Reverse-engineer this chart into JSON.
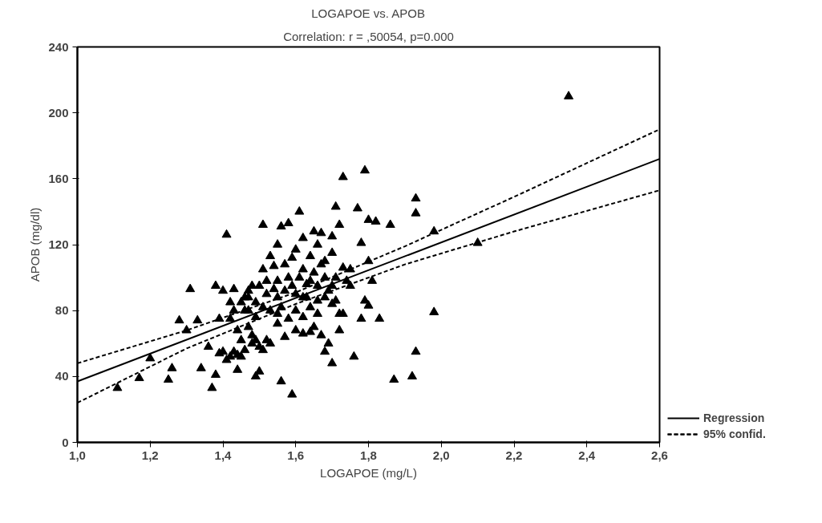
{
  "chart_data": {
    "type": "scatter",
    "title": "LOGAPOE vs. APOB",
    "subtitle": "Correlation: r = ,50054, p=0.000",
    "xlabel": "LOGAPOE (mg/L)",
    "ylabel": "APOB (mg/dl)",
    "xlim": [
      1.0,
      2.6
    ],
    "ylim": [
      0,
      240
    ],
    "xticks": [
      {
        "value": 1.0,
        "label": "1,0"
      },
      {
        "value": 1.2,
        "label": "1,2"
      },
      {
        "value": 1.4,
        "label": "1,4"
      },
      {
        "value": 1.6,
        "label": "1,6"
      },
      {
        "value": 1.8,
        "label": "1,8"
      },
      {
        "value": 2.0,
        "label": "2,0"
      },
      {
        "value": 2.2,
        "label": "2,2"
      },
      {
        "value": 2.4,
        "label": "2,4"
      },
      {
        "value": 2.6,
        "label": "2,6"
      }
    ],
    "yticks": [
      0,
      40,
      80,
      120,
      160,
      200,
      240
    ],
    "grid": false,
    "legend": "bottom right",
    "marker": "triangle",
    "series": [
      {
        "color": "#000000",
        "x": [
          2.35,
          1.11,
          1.17,
          1.2,
          1.25,
          1.26,
          1.28,
          1.3,
          1.31,
          1.33,
          1.34,
          1.36,
          1.37,
          1.38,
          1.38,
          1.39,
          1.4,
          1.4,
          1.41,
          1.42,
          1.42,
          1.43,
          1.44,
          1.44,
          1.45,
          1.46,
          1.47,
          1.48,
          1.48,
          1.49,
          1.5,
          1.51,
          1.51,
          1.52,
          1.53,
          1.54,
          1.55,
          1.56,
          1.56,
          1.58,
          1.59,
          1.6,
          1.61,
          1.62,
          1.63,
          1.65,
          1.66,
          1.68,
          1.7,
          1.71,
          1.72,
          1.73,
          1.75,
          1.77,
          1.78,
          1.79,
          1.8,
          1.82,
          1.86,
          1.87,
          1.93,
          1.93,
          1.92,
          1.93,
          1.98,
          1.98,
          2.1,
          1.8,
          1.81,
          1.83,
          1.78,
          1.79,
          1.8,
          1.76,
          1.72,
          1.7,
          1.71,
          1.73,
          1.68,
          1.69,
          1.67,
          1.65,
          1.66,
          1.64,
          1.62,
          1.6,
          1.58,
          1.57,
          1.55,
          1.53,
          1.52,
          1.51,
          1.5,
          1.49,
          1.48,
          1.47,
          1.46,
          1.45,
          1.44,
          1.43,
          1.42,
          1.41,
          1.39,
          1.46,
          1.47,
          1.49,
          1.5,
          1.52,
          1.54,
          1.55,
          1.56,
          1.57,
          1.58,
          1.59,
          1.6,
          1.61,
          1.62,
          1.63,
          1.64,
          1.65,
          1.66,
          1.67,
          1.68,
          1.69,
          1.7,
          1.71,
          1.72,
          1.55,
          1.53,
          1.51,
          1.49,
          1.47,
          1.45,
          1.43,
          1.6,
          1.62,
          1.64,
          1.66,
          1.68,
          1.7,
          1.73,
          1.74,
          1.57,
          1.59,
          1.55,
          1.62,
          1.67,
          1.7,
          1.75,
          1.64
        ],
        "values": [
          210,
          33,
          39,
          51,
          38,
          45,
          74,
          68,
          93,
          74,
          45,
          58,
          33,
          41,
          95,
          75,
          55,
          92,
          126,
          85,
          75,
          93,
          68,
          44,
          52,
          80,
          88,
          95,
          60,
          40,
          43,
          132,
          105,
          90,
          113,
          107,
          98,
          37,
          131,
          133,
          29,
          117,
          140,
          88,
          96,
          128,
          120,
          110,
          125,
          143,
          132,
          161,
          105,
          142,
          121,
          165,
          135,
          134,
          132,
          38,
          148,
          139,
          40,
          55,
          128,
          79,
          121,
          110,
          98,
          75,
          75,
          86,
          83,
          52,
          68,
          48,
          86,
          78,
          55,
          60,
          65,
          70,
          78,
          67,
          66,
          68,
          75,
          64,
          72,
          60,
          62,
          56,
          58,
          62,
          65,
          70,
          56,
          62,
          53,
          55,
          52,
          50,
          54,
          88,
          92,
          85,
          95,
          98,
          93,
          88,
          82,
          92,
          100,
          95,
          90,
          100,
          105,
          88,
          98,
          103,
          95,
          108,
          100,
          92,
          84,
          100,
          78,
          78,
          80,
          82,
          76,
          80,
          85,
          80,
          80,
          76,
          82,
          86,
          88,
          95,
          106,
          98,
          108,
          112,
          120,
          124,
          127,
          115,
          95,
          113
        ]
      },
      {
        "type": "line",
        "name": "Regression",
        "color": "#000000",
        "line_style": "solid",
        "marker": "none",
        "x": [
          1.0,
          2.6
        ],
        "values": [
          37,
          172
        ]
      },
      {
        "type": "line",
        "name": "95% confid.",
        "color": "#000000",
        "line_style": "dashed",
        "marker": "none",
        "x": [
          1.0,
          1.3,
          1.6,
          1.9,
          2.2,
          2.6
        ],
        "values": [
          48,
          68,
          91,
          119,
          149,
          190
        ]
      },
      {
        "type": "line",
        "color": "#000000",
        "line_style": "dashed",
        "marker": "none",
        "x": [
          1.0,
          1.3,
          1.6,
          1.9,
          2.2,
          2.6
        ],
        "values": [
          24,
          57,
          84,
          108,
          128,
          153
        ]
      }
    ]
  }
}
